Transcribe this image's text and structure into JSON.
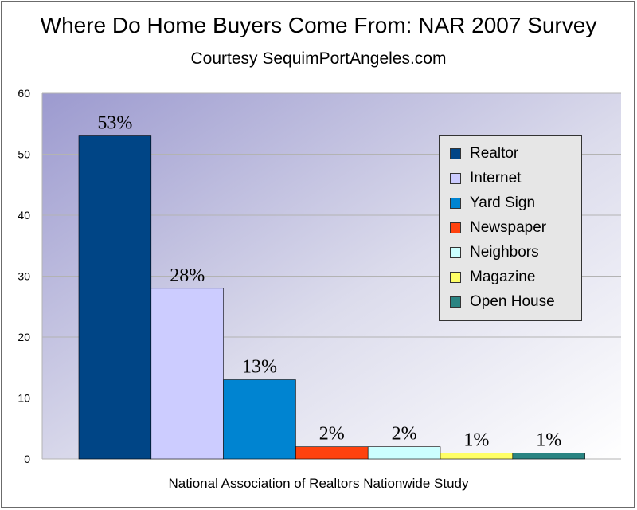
{
  "chart_data": {
    "type": "bar",
    "title": "Where Do Home Buyers Come From:  NAR 2007 Survey",
    "subtitle": "Courtesy SequimPortAngeles.com",
    "xlabel": "National Association of Realtors Nationwide Study",
    "ylabel": "",
    "ylim": [
      0,
      60
    ],
    "yticks": [
      0,
      10,
      20,
      30,
      40,
      50,
      60
    ],
    "grid": true,
    "legend_position": "right",
    "series": [
      {
        "name": "Realtor",
        "value": 53,
        "label": "53%",
        "color": "#004586"
      },
      {
        "name": "Internet",
        "value": 28,
        "label": "28%",
        "color": "#ccccff"
      },
      {
        "name": "Yard Sign",
        "value": 13,
        "label": "13%",
        "color": "#0084d1"
      },
      {
        "name": "Newspaper",
        "value": 2,
        "label": "2%",
        "color": "#ff420e"
      },
      {
        "name": "Neighbors",
        "value": 2,
        "label": "2%",
        "color": "#ccffff"
      },
      {
        "name": "Magazine",
        "value": 1,
        "label": "1%",
        "color": "#ffff66"
      },
      {
        "name": "Open House",
        "value": 1,
        "label": "1%",
        "color": "#2a8482"
      }
    ]
  }
}
